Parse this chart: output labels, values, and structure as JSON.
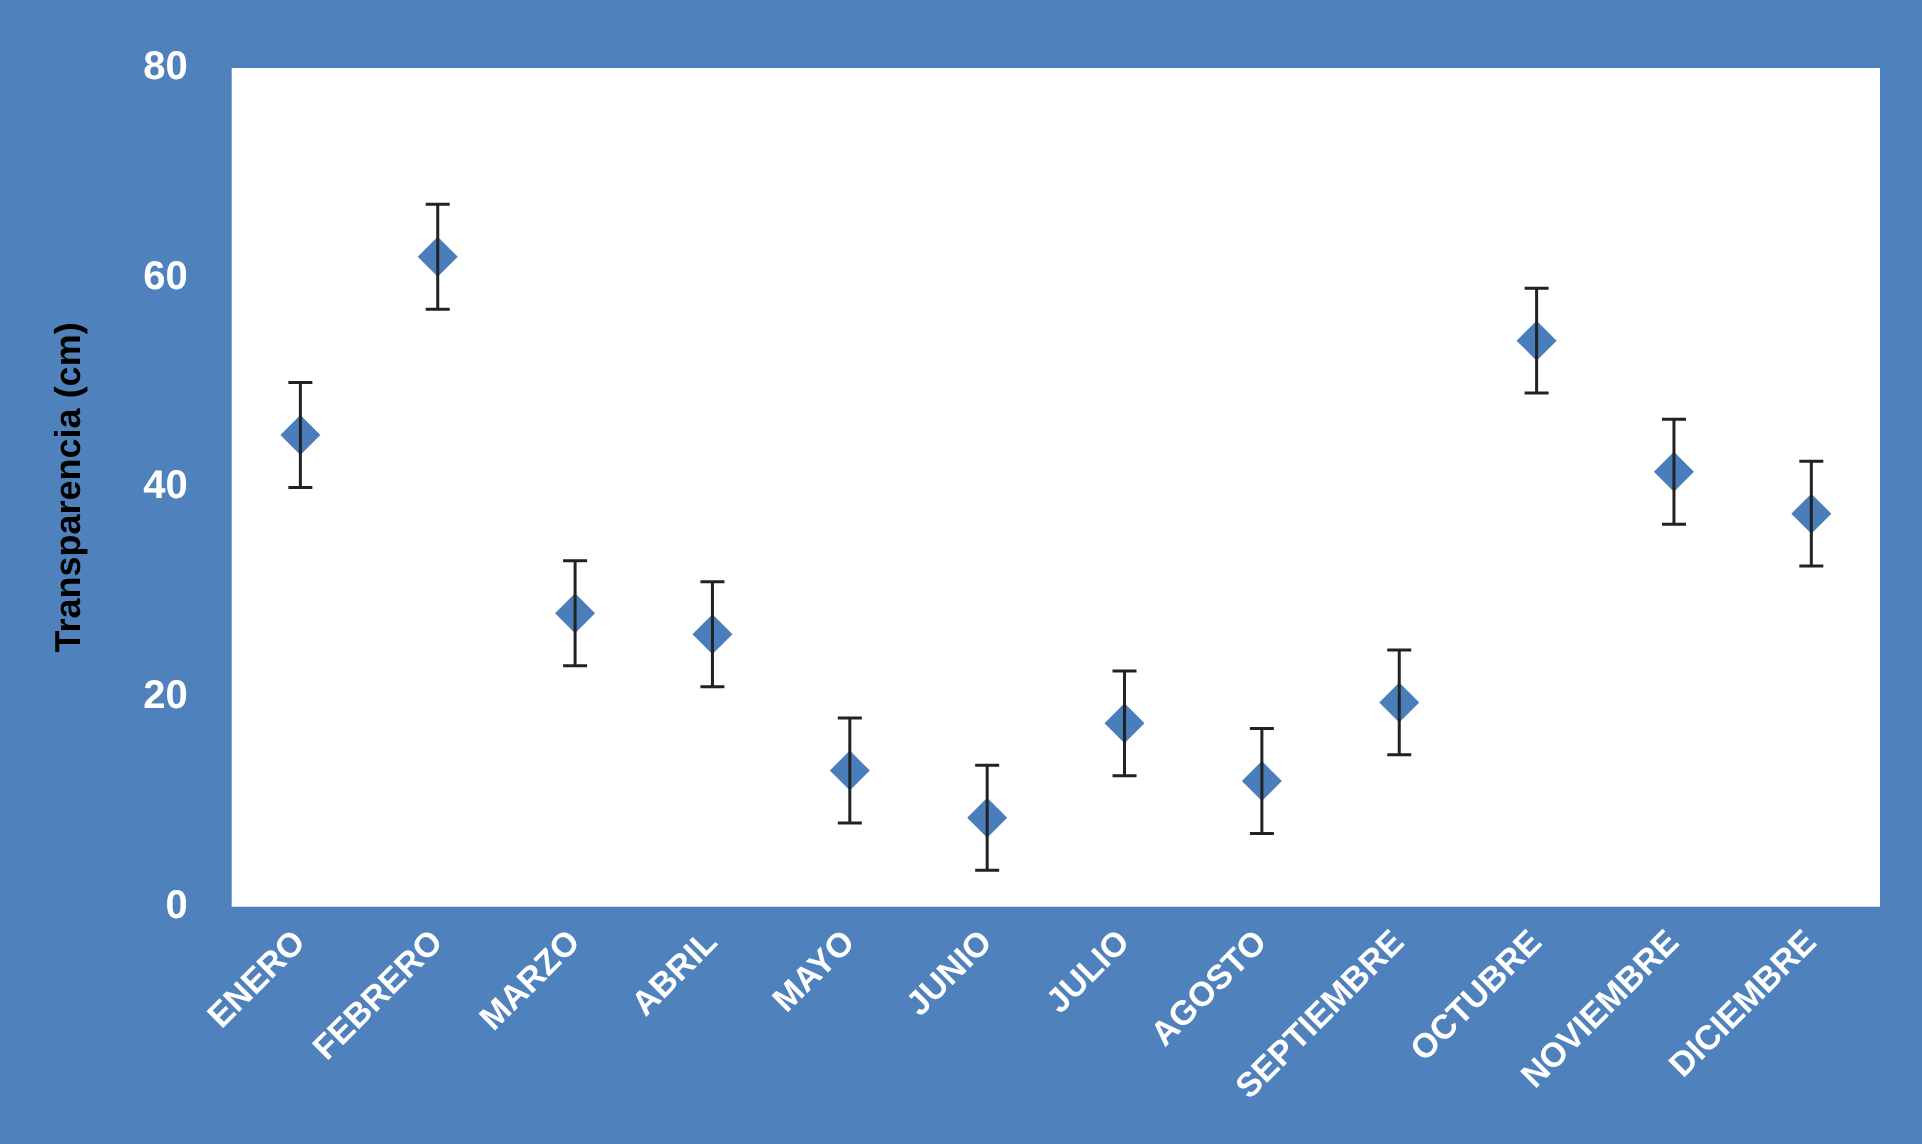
{
  "chart_data": {
    "type": "scatter",
    "ylabel": "Transparencia (cm)",
    "categories": [
      "ENERO",
      "FEBRERO",
      "MARZO",
      "ABRIL",
      "MAYO",
      "JUNIO",
      "JULIO",
      "AGOSTO",
      "SEPTIEMBRE",
      "OCTUBRE",
      "NOVIEMBRE",
      "DICIEMBRE"
    ],
    "series": [
      {
        "color": "#4a7ebb",
        "values": [
          45,
          62,
          28,
          26,
          13,
          8.5,
          17.5,
          12,
          19.5,
          54,
          41.5,
          37.5
        ],
        "errors": [
          5,
          5,
          5,
          5,
          5,
          5,
          5,
          5,
          5,
          5,
          5,
          5
        ]
      }
    ],
    "ylim": [
      0,
      80
    ],
    "yticks": [
      0,
      20,
      40,
      60,
      80
    ],
    "grid": false,
    "legend": false,
    "marker": "diamond"
  }
}
